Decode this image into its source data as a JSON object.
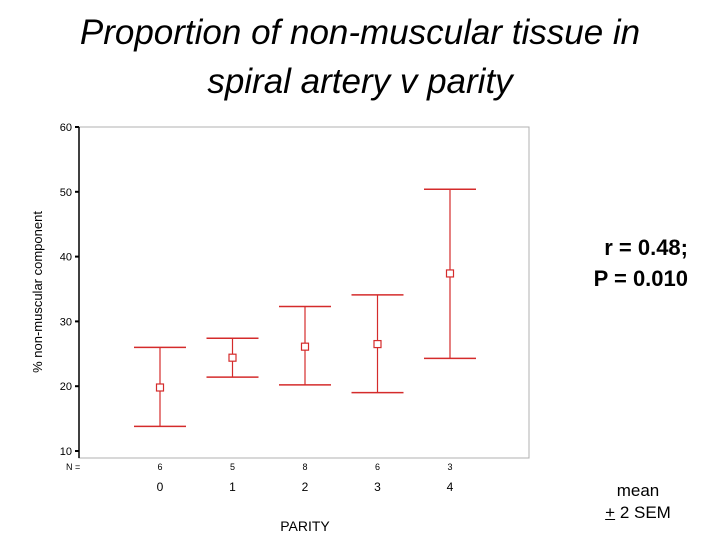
{
  "slide": {
    "title_line1": "Proportion of non-muscular tissue in",
    "title_line2": "spiral artery v parity",
    "stats_line1": "r = 0.48;",
    "stats_line2": "P = 0.010",
    "note_line1": "mean",
    "note_pm": "+",
    "note_rest": " 2 SEM"
  },
  "chart_data": {
    "type": "errorbar",
    "xlabel": "PARITY",
    "ylabel": "% non-muscular component",
    "n_label": "N =",
    "ylim": [
      10,
      60
    ],
    "yticks": [
      10,
      20,
      30,
      40,
      50,
      60
    ],
    "categories": [
      "0",
      "1",
      "2",
      "3",
      "4"
    ],
    "n": [
      "6",
      "5",
      "8",
      "6",
      "3"
    ],
    "mean": [
      19.8,
      24.4,
      26.1,
      26.5,
      37.4
    ],
    "lower": [
      13.8,
      21.4,
      20.2,
      19.0,
      24.3
    ],
    "upper": [
      26.0,
      27.4,
      32.3,
      34.1,
      50.4
    ],
    "marker_color": "#d42b2b",
    "grid": false
  }
}
